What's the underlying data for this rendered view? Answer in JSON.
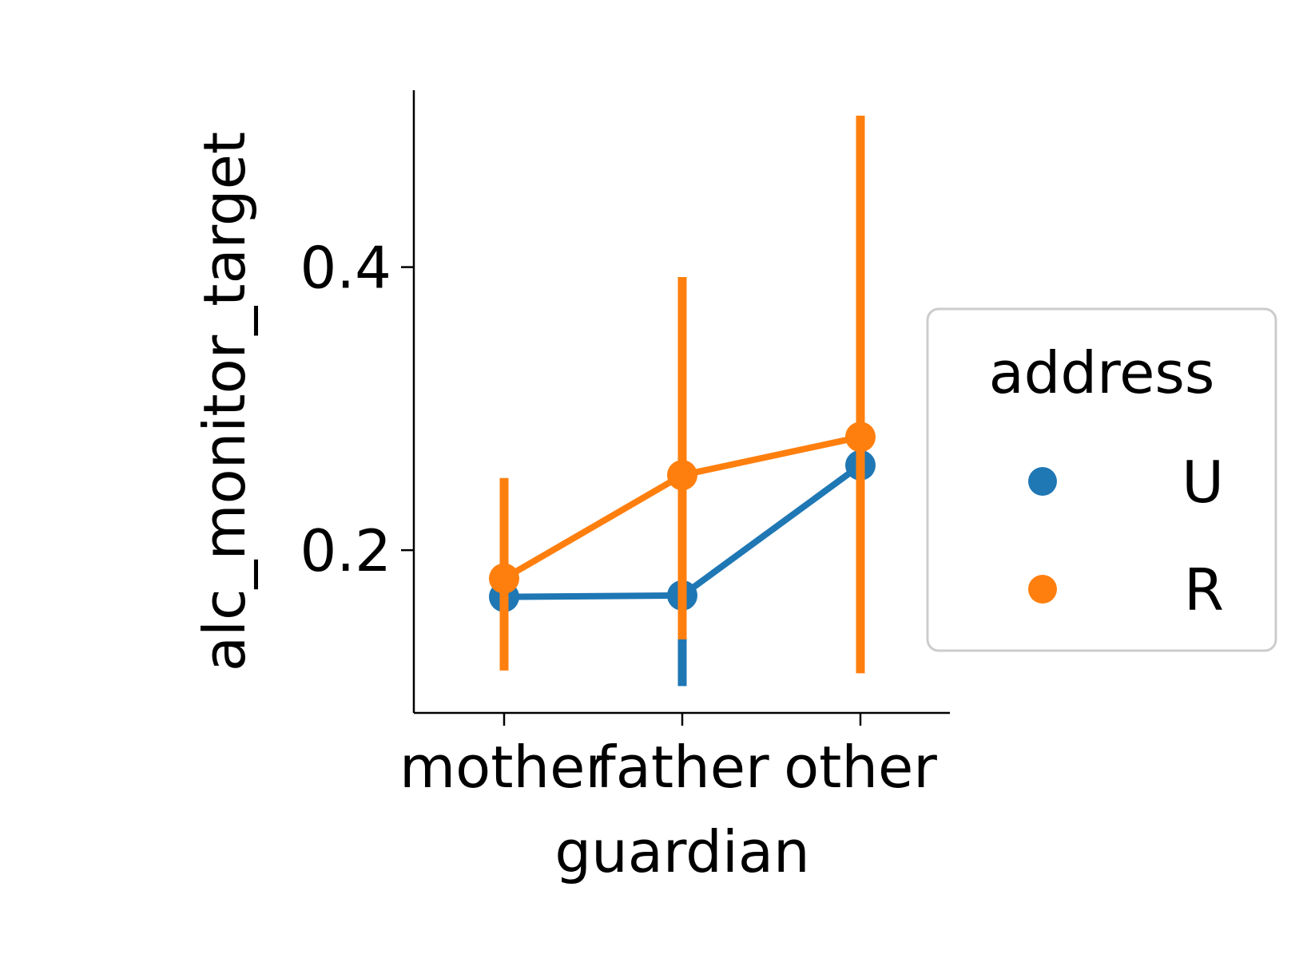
{
  "chart_data": {
    "type": "line",
    "title": "",
    "xlabel": "guardian",
    "ylabel": "alc_monitor_target",
    "categories": [
      "mother",
      "father",
      "other"
    ],
    "ylim": [
      0.085,
      0.525
    ],
    "yticks": [
      0.2,
      0.4
    ],
    "ytick_labels": [
      "0.2",
      "0.4"
    ],
    "grid": false,
    "legend": {
      "title": "address",
      "placement": "right"
    },
    "series": [
      {
        "name": "U",
        "color": "#1f77b4",
        "values": [
          0.167,
          0.168,
          0.26
        ],
        "ci_low": [
          0.132,
          0.104,
          0.195
        ],
        "ci_high": [
          0.203,
          0.24,
          0.34
        ]
      },
      {
        "name": "R",
        "color": "#ff7f0e",
        "values": [
          0.18,
          0.253,
          0.28
        ],
        "ci_low": [
          0.115,
          0.137,
          0.113
        ],
        "ci_high": [
          0.251,
          0.393,
          0.507
        ]
      }
    ]
  }
}
